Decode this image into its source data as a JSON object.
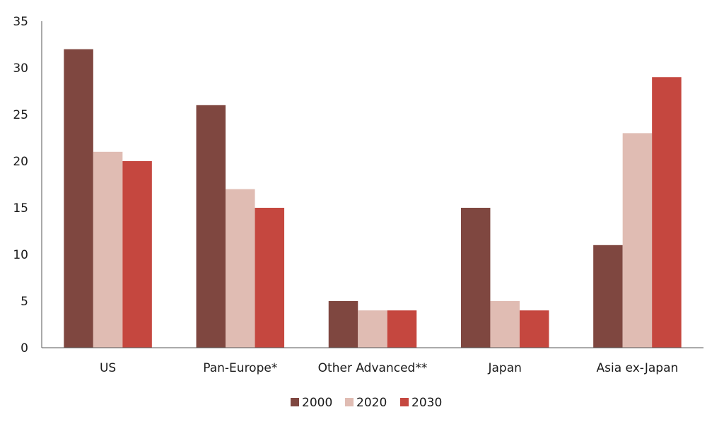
{
  "colors": {
    "series_2000": "#7f4740",
    "series_2020": "#e0bcb3",
    "series_2030": "#c5473f",
    "axis": "#555555"
  },
  "chart_data": {
    "type": "bar",
    "title": "",
    "xlabel": "",
    "ylabel": "",
    "categories": [
      "US",
      "Pan-Europe*",
      "Other Advanced**",
      "Japan",
      "Asia ex-Japan"
    ],
    "series": [
      {
        "name": "2000",
        "values": [
          32,
          26,
          5,
          15,
          11
        ]
      },
      {
        "name": "2020",
        "values": [
          21,
          17,
          4,
          5,
          23
        ]
      },
      {
        "name": "2030",
        "values": [
          20,
          15,
          4,
          4,
          29
        ]
      }
    ],
    "ylim": [
      0,
      35
    ],
    "yticks": [
      0,
      5,
      10,
      15,
      20,
      25,
      30,
      35
    ],
    "grid": false,
    "legend_position": "bottom"
  }
}
